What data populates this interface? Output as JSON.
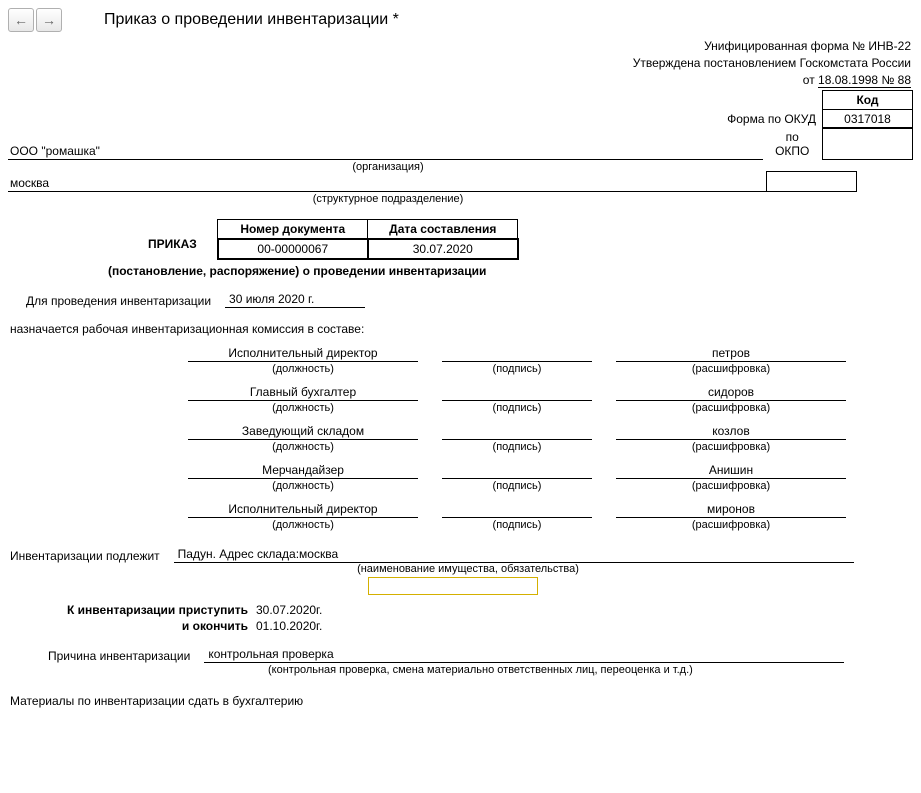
{
  "colors": {
    "border": "#000000",
    "bg": "#ffffff",
    "highlight": "#d4b000",
    "btn_border": "#b0b0b0"
  },
  "toolbar": {
    "back": "←",
    "fwd": "→"
  },
  "title": "Приказ о проведении инвентаризации *",
  "header": {
    "form_line": "Унифицированная форма № ИНВ-22",
    "approved_line": "Утверждена постановлением Госкомстата России",
    "from_prefix": "от ",
    "from_date": "18.08.1998 № 88",
    "code_head": "Код",
    "okud_label": "Форма по ОКУД",
    "okud_val": "0317018",
    "okpo_label": "по ОКПО",
    "okpo_val": ""
  },
  "org": {
    "name": "ООО \"ромашка\"",
    "org_sub": "(организация)",
    "division": "москва",
    "div_sub": "(структурное подразделение)"
  },
  "numblock": {
    "prikaz": "ПРИКАЗ",
    "num_head": "Номер документа",
    "date_head": "Дата составления",
    "num": "00-00000067",
    "date": "30.07.2020",
    "subtitle": "(постановление, распоряжение) о проведении инвентаризации"
  },
  "date_line": {
    "label": "Для проведения инвентаризации",
    "value": "30 июля 2020 г."
  },
  "committee_intro": "назначается рабочая инвентаризационная комиссия в составе:",
  "sign_labels": {
    "pos": "(должность)",
    "sig": "(подпись)",
    "name": "(расшифровка)"
  },
  "members": [
    {
      "pos": "Исполнительный директор",
      "name": "петров"
    },
    {
      "pos": "Главный бухгалтер",
      "name": "сидоров"
    },
    {
      "pos": "Заведующий складом",
      "name": "козлов"
    },
    {
      "pos": "Мерчандайзер",
      "name": "Анишин"
    },
    {
      "pos": "Исполнительный директор",
      "name": "миронов"
    }
  ],
  "subject": {
    "label": "Инвентаризации подлежит",
    "value": "Падун. Адрес склада:москва",
    "sub": "(наименование имущества, обязательства)"
  },
  "dates": {
    "start_label": "К инвентаризации приступить",
    "start": "30.07.2020г.",
    "end_label": "и окончить",
    "end": "01.10.2020г."
  },
  "reason": {
    "label": "Причина инвентаризации",
    "value": "контрольная проверка",
    "sub": "(контрольная проверка, смена материально ответственных лиц, переоценка и т.д.)"
  },
  "footer": "Материалы по инвентаризации сдать в бухгалтерию"
}
